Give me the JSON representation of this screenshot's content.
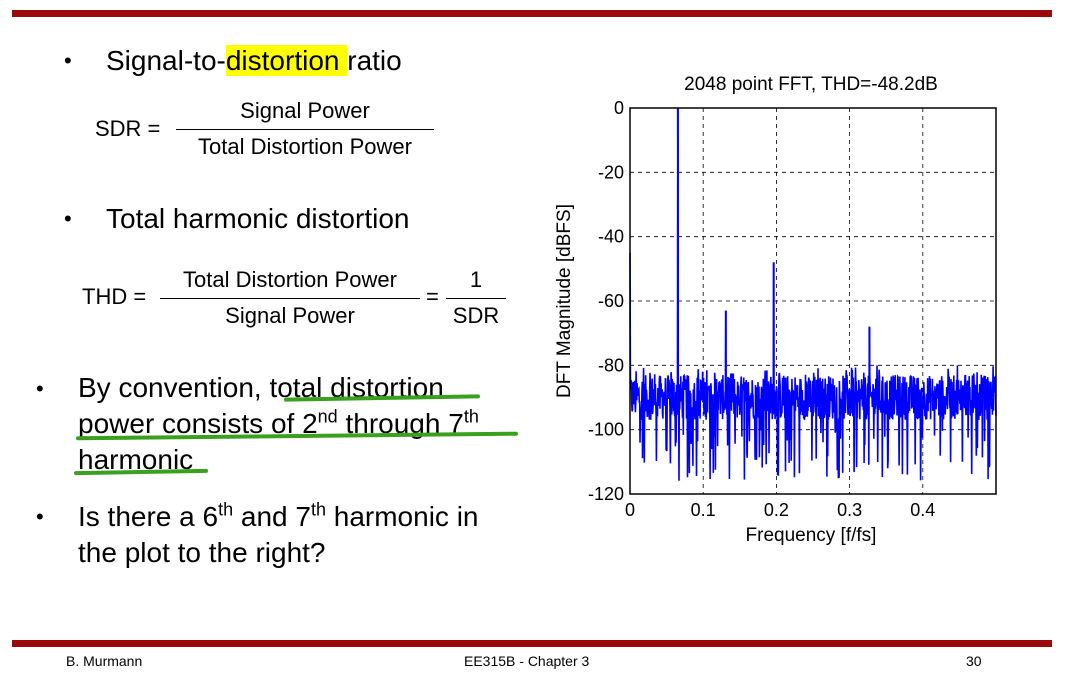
{
  "slide": {
    "bullet1": {
      "prefix": "Signal-to-",
      "highlight": "distortion ",
      "suffix": "ratio"
    },
    "sdr": {
      "lhs": "SDR =",
      "numerator": "Signal Power",
      "denominator": "Total Distortion Power"
    },
    "bullet2": "Total harmonic distortion",
    "thd": {
      "lhs": "THD =",
      "numerator": "Total Distortion Power",
      "denominator": "Signal Power",
      "equals": "=",
      "numerator2": "1",
      "denominator2": "SDR"
    },
    "bullet3": {
      "line1_a": "By convention, ",
      "line1_b": "total distortion",
      "line2_a": "power consists of 2",
      "line2_sup1": "nd",
      "line2_b": " through 7",
      "line2_sup2": "th",
      "line3": "harmonic"
    },
    "bullet4": {
      "line1_a": "Is there a 6",
      "sup1": "th",
      "line1_b": " and 7",
      "sup2": "th",
      "line1_c": " harmonic in",
      "line2": "the plot to the right?"
    }
  },
  "footer": {
    "author": "B. Murmann",
    "course": "EE315B - Chapter 3",
    "page": "30"
  },
  "colors": {
    "bar": "#9b0a0a",
    "highlight": "#ffff00",
    "annotation": "#3aa020",
    "trace": "#0000ff"
  },
  "chart_data": {
    "type": "line",
    "title": "2048 point FFT, THD=-48.2dB",
    "xlabel": "Frequency [f/fs]",
    "ylabel": "DFT Magnitude [dBFS]",
    "xlim": [
      0,
      0.5
    ],
    "ylim": [
      -120,
      0
    ],
    "xticks": [
      0,
      0.1,
      0.2,
      0.3,
      0.4
    ],
    "yticks": [
      0,
      -20,
      -40,
      -60,
      -80,
      -100,
      -120
    ],
    "grid": true,
    "noise_floor_db": -90,
    "noise_range_db": [
      -117,
      -80
    ],
    "peaks": [
      {
        "f": 0.0654,
        "db": 0
      },
      {
        "f": 0.1309,
        "db": -63
      },
      {
        "f": 0.1963,
        "db": -48
      },
      {
        "f": 0.2617,
        "db": -85
      },
      {
        "f": 0.3271,
        "db": -68
      },
      {
        "f": 0.3926,
        "db": -84
      },
      {
        "f": 0.458,
        "db": -83
      }
    ]
  }
}
